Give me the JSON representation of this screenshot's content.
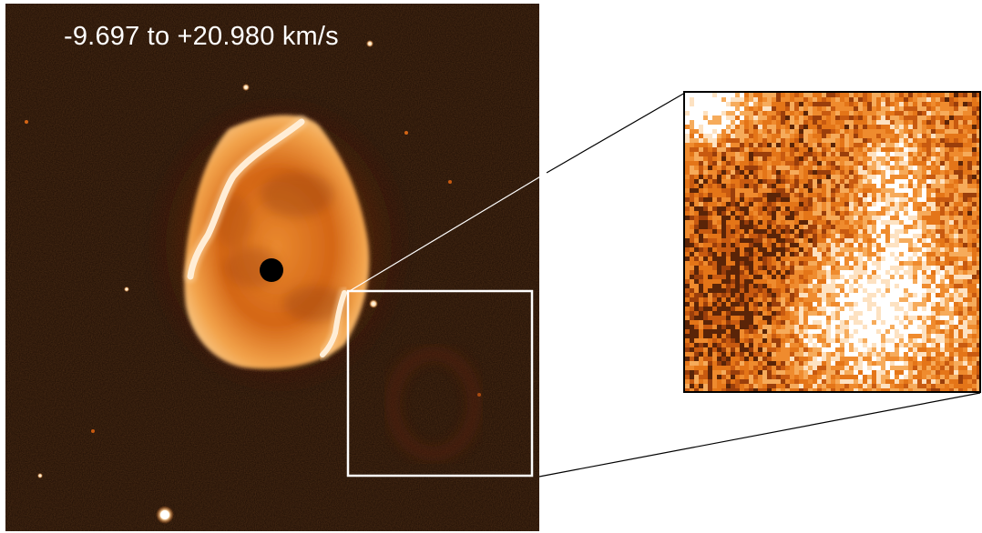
{
  "main_image": {
    "velocity_range_label": "-9.697 to +20.980 km/s",
    "colormap": [
      "#120602",
      "#4a1a06",
      "#8e3a0a",
      "#d46616",
      "#f49a3a",
      "#ffd9a6",
      "#ffffff"
    ],
    "background_color": "#1a0b04",
    "nebula_color": "#d9661a",
    "rim_color": "#ffffff",
    "central_star_color": "#000000"
  },
  "zoom_inset": {
    "box_color": "#ffffff",
    "frame_color": "#000000",
    "connector_color": "#000000",
    "pixel_palette": [
      "#ffffff",
      "#fde2c2",
      "#f6ab5b",
      "#ef8b2e",
      "#e47518",
      "#c85a10",
      "#9a3e0b",
      "#5a2408"
    ]
  }
}
